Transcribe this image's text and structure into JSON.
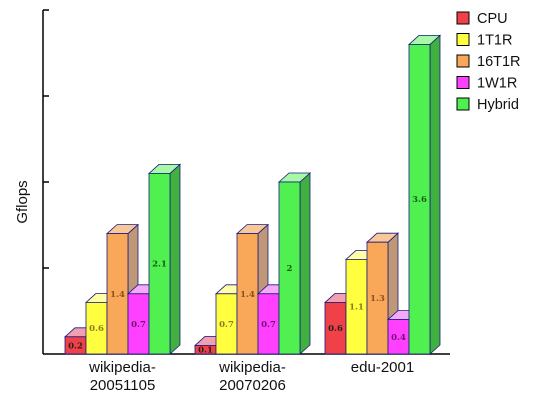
{
  "chart_data": {
    "type": "bar",
    "ylabel": "Gflops",
    "ylim": [
      0,
      4
    ],
    "categories": [
      "wikipedia-\n20051105",
      "wikipedia-\n20070206",
      "edu-2001"
    ],
    "series": [
      {
        "name": "CPU",
        "values": [
          0.2,
          0.1,
          0.6
        ],
        "color": "#f04048",
        "side": "#c98585",
        "top": "#f0a0b0",
        "label_color": "#222222"
      },
      {
        "name": "1T1R",
        "values": [
          0.6,
          0.7,
          1.1
        ],
        "color": "#ffff40",
        "side": "#c8c888",
        "top": "#ffffa8",
        "label_color": "#8a7a20"
      },
      {
        "name": "16T1R",
        "values": [
          1.4,
          1.4,
          1.3
        ],
        "color": "#f8a858",
        "side": "#c09878",
        "top": "#f8c898",
        "label_color": "#8a5020"
      },
      {
        "name": "1W1R",
        "values": [
          0.7,
          0.7,
          0.4
        ],
        "color": "#ff40ff",
        "side": "#c080c0",
        "top": "#f8a8f8",
        "label_color": "#701070"
      },
      {
        "name": "Hybrid",
        "values": [
          2.1,
          2.0,
          3.6
        ],
        "color": "#50f050",
        "side": "#40b040",
        "top": "#a8f8a8",
        "label_color": "#106010"
      }
    ],
    "value_labels": [
      [
        "0.2",
        "0.6",
        "1.4",
        "0.7",
        "2.1"
      ],
      [
        "0.1",
        "0.7",
        "1.4",
        "0.7",
        "2"
      ],
      [
        "0.6",
        "1.1",
        "1.3",
        "0.4",
        "3.6"
      ]
    ],
    "legend_position": "top-right",
    "grid": false
  }
}
